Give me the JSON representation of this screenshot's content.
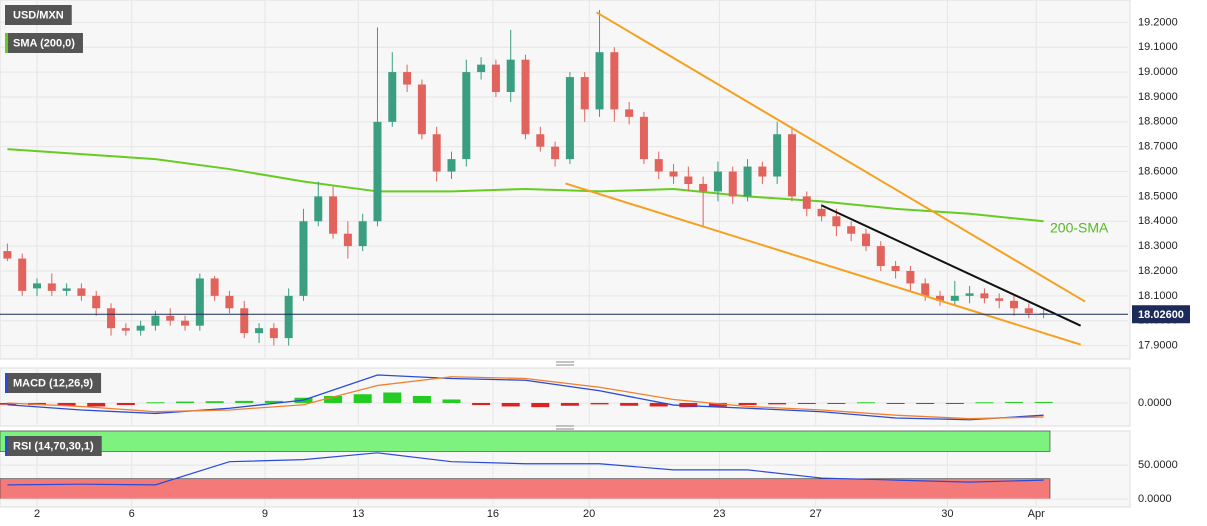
{
  "chart_data": [
    {
      "type": "candlestick",
      "title": "USD/MXN",
      "indicator": "SMA (200,0)",
      "annotation": "200-SMA",
      "up_color": "#3a9e81",
      "down_color": "#e2625c",
      "x": [
        0,
        1,
        2,
        3,
        4,
        5,
        6,
        7,
        8,
        9,
        10,
        11,
        12,
        13,
        14,
        15,
        16,
        17,
        18,
        19,
        20,
        21,
        22,
        23,
        24,
        25,
        26,
        27,
        28,
        29,
        30,
        31,
        32,
        33,
        34,
        35,
        36,
        37,
        38,
        39,
        40,
        41,
        42,
        43,
        44,
        45,
        46,
        47,
        48,
        49,
        50,
        51,
        52,
        53,
        54,
        55,
        56,
        57,
        58,
        59,
        60,
        61,
        62,
        63,
        64,
        65,
        66,
        67,
        68,
        69,
        70
      ],
      "open": [
        18.28,
        18.25,
        18.13,
        18.15,
        18.12,
        18.13,
        18.1,
        18.05,
        17.97,
        17.96,
        17.98,
        18.02,
        18.0,
        17.98,
        18.17,
        18.1,
        18.05,
        17.95,
        17.97,
        17.93,
        18.1,
        18.4,
        18.5,
        18.35,
        18.3,
        18.4,
        18.8,
        19.0,
        18.95,
        18.75,
        18.6,
        18.65,
        19.0,
        19.03,
        18.92,
        19.05,
        18.75,
        18.7,
        18.65,
        18.98,
        18.85,
        19.08,
        18.85,
        18.82,
        18.65,
        18.6,
        18.58,
        18.55,
        18.52,
        18.6,
        18.5,
        18.62,
        18.58,
        18.75,
        18.5,
        18.45,
        18.42,
        18.38,
        18.35,
        18.3,
        18.22,
        18.2,
        18.15,
        18.1,
        18.08,
        18.1,
        18.11,
        18.09,
        18.08,
        18.05,
        18.03
      ],
      "high": [
        18.31,
        18.27,
        18.17,
        18.19,
        18.15,
        18.15,
        18.12,
        18.07,
        17.99,
        18.0,
        18.04,
        18.05,
        18.02,
        18.19,
        18.18,
        18.12,
        18.08,
        17.99,
        17.99,
        18.13,
        18.45,
        18.56,
        18.54,
        18.4,
        18.43,
        19.18,
        19.08,
        19.03,
        18.97,
        18.78,
        18.68,
        19.05,
        19.06,
        19.05,
        19.17,
        19.07,
        18.78,
        18.72,
        19.0,
        19.0,
        19.25,
        19.1,
        18.88,
        18.84,
        18.68,
        18.63,
        18.62,
        18.58,
        18.64,
        18.62,
        18.65,
        18.64,
        18.8,
        18.78,
        18.52,
        18.47,
        18.45,
        18.4,
        18.37,
        18.32,
        18.24,
        18.22,
        18.17,
        18.12,
        18.16,
        18.14,
        18.13,
        18.11,
        18.1,
        18.07,
        18.05
      ],
      "low": [
        18.24,
        18.1,
        18.1,
        18.1,
        18.1,
        18.08,
        18.02,
        17.94,
        17.94,
        17.94,
        17.96,
        17.98,
        17.96,
        17.96,
        18.08,
        18.03,
        17.93,
        17.91,
        17.9,
        17.9,
        18.08,
        18.38,
        18.33,
        18.25,
        18.28,
        18.38,
        18.78,
        18.92,
        18.73,
        18.56,
        18.57,
        18.62,
        18.97,
        18.9,
        18.88,
        18.73,
        18.68,
        18.62,
        18.63,
        18.8,
        18.82,
        18.8,
        18.79,
        18.63,
        18.57,
        18.55,
        18.52,
        18.38,
        18.48,
        18.47,
        18.48,
        18.55,
        18.55,
        18.48,
        18.42,
        18.4,
        18.34,
        18.32,
        18.28,
        18.2,
        18.17,
        18.12,
        18.08,
        18.06,
        18.06,
        18.07,
        18.07,
        18.05,
        18.02,
        18.01,
        18.01
      ],
      "close": [
        18.25,
        18.12,
        18.15,
        18.12,
        18.13,
        18.1,
        18.05,
        17.97,
        17.96,
        17.98,
        18.02,
        18.0,
        17.98,
        18.17,
        18.1,
        18.05,
        17.95,
        17.97,
        17.93,
        18.1,
        18.4,
        18.5,
        18.35,
        18.3,
        18.4,
        18.8,
        19.0,
        18.95,
        18.75,
        18.6,
        18.65,
        19.0,
        19.03,
        18.92,
        19.05,
        18.75,
        18.7,
        18.65,
        18.98,
        18.85,
        19.08,
        18.85,
        18.82,
        18.65,
        18.6,
        18.58,
        18.55,
        18.52,
        18.6,
        18.5,
        18.62,
        18.58,
        18.75,
        18.5,
        18.45,
        18.42,
        18.38,
        18.35,
        18.3,
        18.22,
        18.2,
        18.15,
        18.1,
        18.08,
        18.1,
        18.11,
        18.09,
        18.08,
        18.05,
        18.03,
        18.026
      ],
      "sma": {
        "color": "#66cc22",
        "x": [
          0,
          5,
          10,
          15,
          20,
          25,
          30,
          35,
          40,
          45,
          50,
          55,
          60,
          65,
          70
        ],
        "values": [
          18.69,
          18.67,
          18.65,
          18.61,
          18.56,
          18.52,
          18.52,
          18.53,
          18.52,
          18.53,
          18.5,
          18.48,
          18.45,
          18.43,
          18.4
        ]
      },
      "trendlines": [
        {
          "color": "#f5a020",
          "x": [
            39.8,
            72.8
          ],
          "values": [
            19.24,
            18.077
          ]
        },
        {
          "color": "#f5a020",
          "x": [
            37.7,
            72.5
          ],
          "values": [
            18.552,
            17.904
          ]
        },
        {
          "color": "#111111",
          "x": [
            55,
            72.5
          ],
          "values": [
            18.464,
            17.98
          ]
        }
      ],
      "price_line": {
        "value": 18.026,
        "label": "18.02600",
        "color": "#1c2b5a"
      },
      "xlim": [
        -0.5,
        75.7
      ],
      "xticks": [
        2,
        {
          "value": 8.4,
          "label": "6"
        },
        {
          "value": 17.4,
          "label": "9"
        },
        {
          "value": 23.7,
          "label": "13"
        },
        {
          "value": 32.8,
          "label": "16"
        },
        {
          "value": 39.3,
          "label": "20"
        },
        {
          "value": 48.1,
          "label": "23"
        },
        {
          "value": 54.6,
          "label": "27"
        },
        {
          "value": 63.5,
          "label": "30"
        },
        {
          "value": 69.5,
          "label": "Apr"
        }
      ],
      "ylim": [
        17.85,
        19.29
      ],
      "yticks": [
        {
          "value": 17.9,
          "label": "17.9000"
        },
        {
          "value": 18.0,
          "label": "18.0000"
        },
        {
          "value": 18.1,
          "label": "18.1000"
        },
        {
          "value": 18.2,
          "label": "18.2000"
        },
        {
          "value": 18.3,
          "label": "18.3000"
        },
        {
          "value": 18.4,
          "label": "18.4000"
        },
        {
          "value": 18.5,
          "label": "18.5000"
        },
        {
          "value": 18.6,
          "label": "18.6000"
        },
        {
          "value": 18.7,
          "label": "18.7000"
        },
        {
          "value": 18.8,
          "label": "18.8000"
        },
        {
          "value": 18.9,
          "label": "18.9000"
        },
        {
          "value": 19.0,
          "label": "19.0000"
        },
        {
          "value": 19.1,
          "label": "19.1000"
        },
        {
          "value": 19.2,
          "label": "19.2000"
        }
      ],
      "grid": true
    },
    {
      "type": "macd",
      "title": "MACD (12,26,9)",
      "title_color": "#2a4bd7",
      "ylim": [
        -0.063,
        0.1
      ],
      "yticks": [
        {
          "value": 0,
          "label": "0.0000"
        }
      ],
      "x": [
        0,
        5,
        10,
        15,
        20,
        25,
        30,
        35,
        40,
        45,
        50,
        55,
        60,
        65,
        70
      ],
      "series": [
        {
          "color": "#2a4bd7",
          "values": [
            -0.005,
            -0.02,
            -0.03,
            -0.015,
            0.008,
            0.08,
            0.07,
            0.065,
            0.035,
            -0.006,
            -0.015,
            -0.025,
            -0.043,
            -0.048,
            -0.035
          ]
        },
        {
          "color": "#f08030",
          "values": [
            0.0,
            -0.01,
            -0.025,
            -0.02,
            -0.005,
            0.05,
            0.075,
            0.07,
            0.045,
            0.01,
            -0.01,
            -0.02,
            -0.035,
            -0.045,
            -0.04
          ]
        }
      ],
      "histogram": {
        "up_color": "#22cc22",
        "down_color": "#dd2222",
        "x": [
          0,
          2,
          4,
          6,
          8,
          10,
          12,
          14,
          16,
          18,
          20,
          22,
          24,
          26,
          28,
          30,
          32,
          34,
          36,
          38,
          40,
          42,
          44,
          46,
          48,
          50,
          52,
          54,
          56,
          58,
          60,
          62,
          64,
          66,
          68,
          70
        ],
        "values": [
          -0.005,
          -0.006,
          -0.008,
          -0.01,
          -0.006,
          0.002,
          0.004,
          0.005,
          0.006,
          0.006,
          0.015,
          0.02,
          0.025,
          0.03,
          0.02,
          0.01,
          -0.006,
          -0.01,
          -0.012,
          -0.008,
          -0.004,
          -0.008,
          -0.01,
          -0.012,
          -0.01,
          -0.006,
          -0.004,
          -0.003,
          -0.002,
          0.002,
          -0.002,
          -0.003,
          -0.002,
          0.002,
          0.003,
          0.003
        ]
      }
    },
    {
      "type": "rsi",
      "title": "RSI (14,70,30,1)",
      "title_color": "#2a4bd7",
      "ylim": [
        -10,
        100
      ],
      "yticks": [
        {
          "value": 50,
          "label": "50.0000"
        },
        {
          "value": 0,
          "label": "0.0000"
        }
      ],
      "zones": [
        {
          "from": 70,
          "to": 100,
          "color": "#7ef27e"
        },
        {
          "from": 0,
          "to": 30,
          "color": "#f47a7a"
        }
      ],
      "x": [
        0,
        5,
        10,
        15,
        20,
        25,
        30,
        35,
        40,
        45,
        50,
        55,
        60,
        65,
        70
      ],
      "series": [
        {
          "color": "#2a4bd7",
          "values": [
            21,
            22,
            21,
            55,
            58,
            68,
            55,
            52,
            52,
            43,
            43,
            31,
            28,
            25,
            28
          ]
        }
      ]
    }
  ]
}
